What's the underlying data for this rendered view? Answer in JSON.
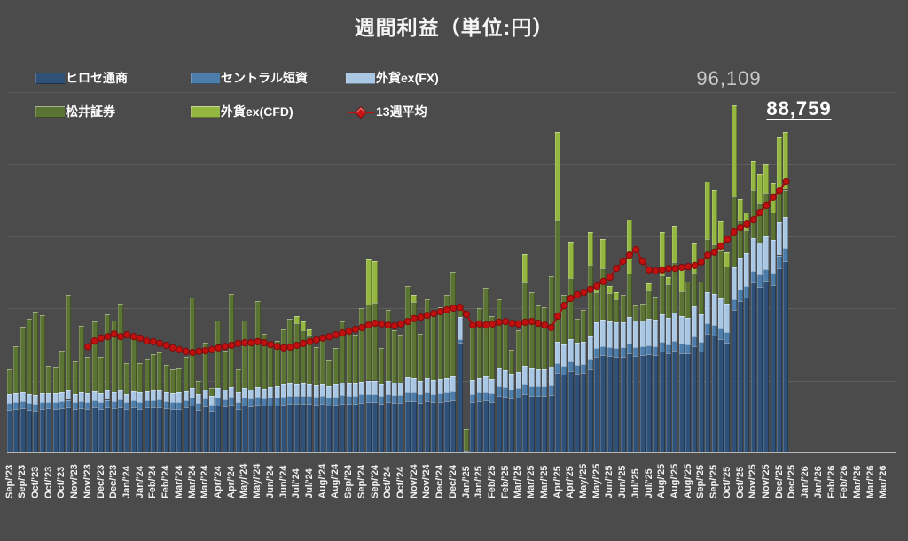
{
  "title": "週間利益（単位:円）",
  "annotations": {
    "max_value": "96,109",
    "latest_value": "88,759"
  },
  "colors": {
    "background": "#4b4b4b",
    "grid": "rgba(255,255,255,0.11)",
    "axis": "#dcdcdc",
    "title_text": "#f5f5f5",
    "max_annotation_text": "#c9c9c9",
    "latest_annotation_text": "#ffffff",
    "average_line": "#c01010"
  },
  "chart_data": {
    "type": "bar",
    "stacked": true,
    "overlay_line": true,
    "title": "週間利益（単位:円）",
    "unit": "円",
    "ylabel": "",
    "xlabel": "",
    "ylim": [
      0,
      100000
    ],
    "gridline_step": 20000,
    "grid": true,
    "legend_position": "top-left",
    "weeks_count": 120,
    "x_label_every_n_weeks": 2,
    "x_axis_labels": [
      "Sep/'23",
      "Sep/'23",
      "Oct/'23",
      "Oct/'23",
      "Oct/'23",
      "Nov/'23",
      "Nov/'23",
      "Dec/'23",
      "Dec/'23",
      "Jan/'24",
      "Jan/'24",
      "Feb/'24",
      "Feb/'24",
      "Mar/'24",
      "Mar/'24",
      "Mar/'24",
      "Apr/'24",
      "Apr/'24",
      "May/'24",
      "May/'24",
      "Jun/'24",
      "Jun/'24",
      "Jul/'24",
      "Jul/'24",
      "Aug/'24",
      "Aug/'24",
      "Sep/'24",
      "Sep/'24",
      "Sep/'24",
      "Oct/'24",
      "Oct/'24",
      "Nov/'24",
      "Nov/'24",
      "Dec/'24",
      "Dec/'24",
      "Jan/'25",
      "Jan/'25",
      "Feb/'25",
      "Feb/'25",
      "Mar/'25",
      "Mar/'25",
      "Mar/'25",
      "Apr/'25",
      "Apr/'25",
      "May/'25",
      "May/'25",
      "Jun/'25",
      "Jun/'25",
      "Jul/'25",
      "Jul/'25",
      "Aug/'25",
      "Aug/'25",
      "Aug/'25",
      "Sep/'25",
      "Sep/'25",
      "Oct/'25",
      "Oct/'25",
      "Nov/'25",
      "Nov/'25",
      "Dec/'25",
      "Dec/'25",
      "Jan/'26",
      "Jan/'26",
      "Feb/'26",
      "Feb/'26",
      "Mar/'26",
      "Mar/'26",
      "Mar/'26"
    ],
    "series": [
      {
        "name": "ヒロセ通商",
        "color": "#2f5178",
        "values": [
          11800,
          12000,
          12300,
          11800,
          11500,
          12000,
          12200,
          12000,
          12200,
          12500,
          12000,
          12300,
          12000,
          12400,
          12000,
          12500,
          12300,
          12600,
          12000,
          12400,
          12100,
          12400,
          12500,
          12600,
          12200,
          12000,
          12100,
          12400,
          13000,
          11800,
          12800,
          11500,
          13000,
          12700,
          13200,
          12100,
          13000,
          12800,
          13200,
          12900,
          13000,
          13100,
          13300,
          13500,
          13400,
          13500,
          13400,
          13200,
          13400,
          13000,
          13300,
          13600,
          13500,
          13500,
          13800,
          14000,
          14000,
          13400,
          13900,
          13700,
          13700,
          14300,
          14200,
          13800,
          14200,
          14000,
          14100,
          14200,
          14500,
          30400,
          400,
          14000,
          14200,
          14400,
          14100,
          15800,
          15500,
          15000,
          15300,
          16200,
          15800,
          15700,
          15700,
          16000,
          22000,
          21500,
          22500,
          21800,
          22000,
          23000,
          26500,
          27000,
          26800,
          26500,
          26600,
          27500,
          26800,
          26900,
          27200,
          27000,
          28000,
          27400,
          28200,
          27600,
          27400,
          29500,
          28000,
          33000,
          32500,
          31500,
          30500,
          39500,
          42000,
          43000,
          47000,
          46000,
          47500,
          46500,
          51000,
          53000
        ]
      },
      {
        "name": "セントラル短資",
        "color": "#4d7dab",
        "values": [
          1900,
          2000,
          2000,
          1900,
          2000,
          2000,
          1900,
          2000,
          2000,
          2100,
          1900,
          2000,
          2000,
          2000,
          2000,
          2100,
          2000,
          2100,
          1900,
          2000,
          2000,
          2000,
          2000,
          2100,
          2000,
          2000,
          2000,
          2000,
          2100,
          1900,
          2100,
          1800,
          2100,
          2100,
          2200,
          2000,
          2100,
          2100,
          2200,
          2100,
          2100,
          2100,
          2200,
          2200,
          2200,
          2200,
          2200,
          2200,
          2200,
          2100,
          2200,
          2300,
          2200,
          2200,
          2300,
          2300,
          2300,
          2200,
          2300,
          2300,
          2300,
          2400,
          2400,
          2300,
          2400,
          2300,
          2300,
          2400,
          2400,
          1000,
          0,
          2300,
          2400,
          2400,
          2300,
          2600,
          2600,
          2500,
          2500,
          2700,
          2600,
          2600,
          2600,
          2700,
          2700,
          2600,
          2700,
          2600,
          2600,
          2700,
          2500,
          2500,
          2500,
          2500,
          2500,
          2600,
          2500,
          2500,
          2500,
          2500,
          2600,
          2500,
          2600,
          2600,
          2500,
          2700,
          2600,
          2900,
          2900,
          2800,
          2800,
          3000,
          3100,
          3200,
          3400,
          3300,
          3400,
          3400,
          3600,
          3700
        ]
      },
      {
        "name": "外貨ex(FX)",
        "color": "#aac8e4",
        "values": [
          2400,
          2400,
          2500,
          2400,
          2500,
          2500,
          2400,
          2400,
          2500,
          2600,
          2400,
          2500,
          2500,
          2600,
          2500,
          2600,
          2500,
          2600,
          2400,
          2500,
          2500,
          2600,
          2600,
          2600,
          2500,
          2500,
          2500,
          2600,
          2700,
          2400,
          2600,
          2300,
          2700,
          2600,
          2800,
          2500,
          2700,
          2600,
          2800,
          2700,
          3000,
          3100,
          3300,
          3400,
          3400,
          3400,
          3300,
          3300,
          3400,
          3200,
          3300,
          3500,
          3500,
          3500,
          3600,
          3700,
          3700,
          3400,
          3600,
          3500,
          3500,
          4200,
          4100,
          3700,
          4000,
          3900,
          4000,
          4100,
          4300,
          6100,
          0,
          3900,
          4100,
          4200,
          4000,
          4800,
          4700,
          4400,
          4500,
          5200,
          4900,
          4800,
          4800,
          5000,
          6000,
          5800,
          6200,
          6000,
          6000,
          6500,
          7000,
          7200,
          7100,
          7000,
          7000,
          7500,
          7200,
          7200,
          7300,
          7200,
          7800,
          7400,
          8000,
          7600,
          7500,
          8200,
          7800,
          8600,
          8500,
          8300,
          8000,
          8700,
          8800,
          8900,
          9000,
          8900,
          9000,
          8900,
          9100,
          8600
        ]
      },
      {
        "name": "松井証券",
        "color": "#5c7433",
        "values": [
          7000,
          13000,
          18000,
          21000,
          23000,
          21500,
          7500,
          7200,
          11500,
          26500,
          9000,
          18300,
          10000,
          19300,
          10000,
          21100,
          19800,
          23900,
          8500,
          16000,
          8200,
          8800,
          10100,
          10400,
          7600,
          6600,
          6700,
          9500,
          25100,
          3800,
          12900,
          2300,
          18800,
          10800,
          25700,
          6500,
          18800,
          12700,
          23800,
          15200,
          11600,
          12600,
          15300,
          18000,
          16800,
          14700,
          13700,
          10500,
          12700,
          7200,
          10200,
          16900,
          14400,
          13400,
          20300,
          21000,
          21500,
          10000,
          19700,
          14400,
          13100,
          25200,
          21000,
          13100,
          21900,
          18600,
          19800,
          23000,
          28900,
          2500,
          6000,
          16100,
          19300,
          24600,
          17400,
          19300,
          14300,
          6600,
          11600,
          22900,
          21100,
          17600,
          17100,
          25100,
          33700,
          13800,
          17000,
          6700,
          8900,
          19900,
          8400,
          14400,
          7700,
          6400,
          7600,
          11900,
          4200,
          4600,
          7900,
          6500,
          10700,
          9300,
          14000,
          6800,
          10000,
          9500,
          9000,
          14600,
          13700,
          13500,
          10200,
          19909,
          10300,
          6400,
          13300,
          10900,
          12100,
          7800,
          8700,
          7459
        ]
      },
      {
        "name": "外貨ex(CFD)",
        "color": "#94b741",
        "values": [
          0,
          0,
          0,
          0,
          0,
          0,
          0,
          0,
          0,
          0,
          0,
          0,
          0,
          0,
          0,
          0,
          0,
          0,
          0,
          0,
          0,
          0,
          0,
          0,
          0,
          0,
          0,
          0,
          0,
          0,
          0,
          0,
          0,
          0,
          0,
          0,
          0,
          0,
          0,
          0,
          0,
          0,
          0,
          0,
          2000,
          2500,
          1500,
          0,
          0,
          0,
          0,
          0,
          1000,
          0,
          0,
          12500,
          11500,
          0,
          0,
          0,
          0,
          0,
          2000,
          0,
          0,
          0,
          0,
          0,
          0,
          0,
          0,
          0,
          0,
          0,
          0,
          0,
          0,
          0,
          0,
          8000,
          0,
          0,
          0,
          0,
          24400,
          0,
          10000,
          0,
          0,
          9000,
          2500,
          8000,
          2000,
          2000,
          0,
          15000,
          0,
          0,
          2000,
          0,
          12000,
          2000,
          10000,
          6000,
          0,
          8000,
          0,
          16000,
          15000,
          8000,
          4000,
          25000,
          6000,
          5000,
          8000,
          8000,
          8000,
          8000,
          15000,
          16000
        ]
      }
    ],
    "line_series": {
      "name": "13週平均",
      "color": "#c01010",
      "start_index": 12,
      "values": [
        29300,
        30900,
        31700,
        32100,
        32800,
        32100,
        32600,
        32100,
        31700,
        30900,
        30700,
        30200,
        29700,
        29000,
        28500,
        28000,
        27700,
        28000,
        28200,
        28500,
        29000,
        29400,
        29700,
        30200,
        30400,
        30400,
        30700,
        30400,
        29900,
        29400,
        29000,
        29200,
        29700,
        30200,
        30700,
        31200,
        31700,
        32100,
        32600,
        33100,
        33600,
        34100,
        34600,
        35300,
        35800,
        35600,
        35300,
        35100,
        35600,
        36300,
        37100,
        37500,
        38000,
        38500,
        39000,
        39500,
        40000,
        40200,
        38300,
        35300,
        35600,
        35300,
        35600,
        36100,
        36300,
        35800,
        35600,
        36100,
        36300,
        35800,
        35300,
        34600,
        37800,
        40700,
        42700,
        43700,
        44400,
        45200,
        46100,
        47400,
        48600,
        51000,
        53000,
        54700,
        56200,
        53000,
        50600,
        50300,
        50600,
        51000,
        51000,
        51300,
        51500,
        51800,
        52800,
        54700,
        55500,
        57200,
        59100,
        61100,
        62300,
        63300,
        64500,
        66500,
        68500,
        70700,
        72600,
        75100
      ]
    },
    "callouts": [
      {
        "week_index": 111,
        "text": "96,109"
      },
      {
        "week_index": 119,
        "text": "88,759",
        "underline": true
      }
    ]
  }
}
